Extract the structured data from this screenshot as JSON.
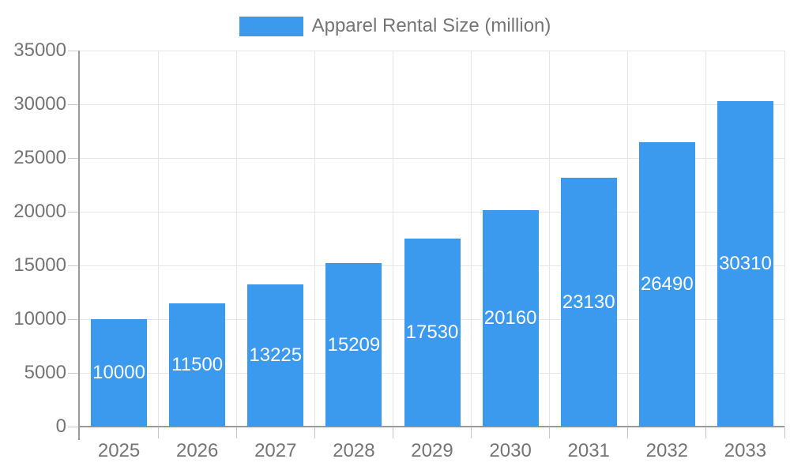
{
  "chart_data": {
    "type": "bar",
    "title": "",
    "xlabel": "",
    "ylabel": "",
    "categories": [
      "2025",
      "2026",
      "2027",
      "2028",
      "2029",
      "2030",
      "2031",
      "2032",
      "2033"
    ],
    "series": [
      {
        "name": "Apparel Rental Size (million)",
        "color": "#3B99EE",
        "values": [
          10000,
          11500,
          13225,
          15209,
          17530,
          20160,
          23130,
          26490,
          30310
        ]
      }
    ],
    "value_labels": [
      "10000",
      "11500",
      "13225",
      "15209",
      "17530",
      "20160",
      "23130",
      "26490",
      "30310"
    ],
    "yticks": [
      0,
      5000,
      10000,
      15000,
      20000,
      25000,
      30000,
      35000
    ],
    "ylim": [
      0,
      35000
    ],
    "grid": true,
    "legend_position": "top-center",
    "value_label_position": "inside-center",
    "colors": {
      "bar": "#3B99EE",
      "grid": "#E6E6E6",
      "tick": "#C9C9C9",
      "axis": "#9A9A9A",
      "label_text": "#757575",
      "value_text": "#FFFFFF",
      "background": "#FFFFFF"
    }
  }
}
